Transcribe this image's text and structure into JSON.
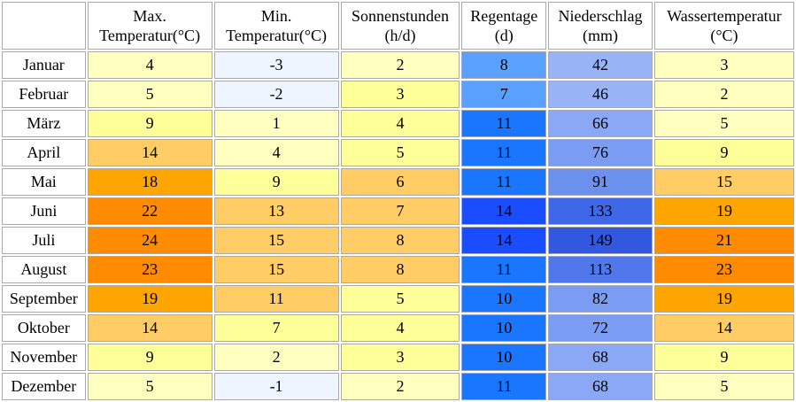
{
  "table": {
    "headers": [
      {
        "line1": "Max.",
        "line2": "Temperatur(°C)"
      },
      {
        "line1": "Min.",
        "line2": "Temperatur(°C)"
      },
      {
        "line1": "Sonnenstunden",
        "line2": "(h/d)"
      },
      {
        "line1": "Regentage",
        "line2": "(d)"
      },
      {
        "line1": "Niederschlag",
        "line2": "(mm)"
      },
      {
        "line1": "Wassertemperatur",
        "line2": "(°C)"
      }
    ],
    "rows": [
      {
        "month": "Januar",
        "values": [
          "4",
          "-3",
          "2",
          "8",
          "42",
          "3"
        ],
        "colors": [
          "#ffffc0",
          "#eef5ff",
          "#ffffc0",
          "#5aa0ff",
          "#98b4f7",
          "#ffffc0"
        ]
      },
      {
        "month": "Februar",
        "values": [
          "5",
          "-2",
          "3",
          "7",
          "46",
          "2"
        ],
        "colors": [
          "#ffffc0",
          "#eef5ff",
          "#ffff99",
          "#5aa0ff",
          "#98b4f7",
          "#ffffc0"
        ]
      },
      {
        "month": "März",
        "values": [
          "9",
          "1",
          "4",
          "11",
          "66",
          "5"
        ],
        "colors": [
          "#ffff99",
          "#ffffc0",
          "#ffff99",
          "#1a75ff",
          "#8aa8f5",
          "#ffffc0"
        ]
      },
      {
        "month": "April",
        "values": [
          "14",
          "4",
          "5",
          "11",
          "76",
          "9"
        ],
        "colors": [
          "#ffcc66",
          "#ffffc0",
          "#ffff99",
          "#1a75ff",
          "#7a9cf2",
          "#ffff99"
        ]
      },
      {
        "month": "Mai",
        "values": [
          "18",
          "9",
          "6",
          "11",
          "91",
          "15"
        ],
        "colors": [
          "#ffa500",
          "#ffff99",
          "#ffcc66",
          "#1a75ff",
          "#6b90ee",
          "#ffcc66"
        ]
      },
      {
        "month": "Juni",
        "values": [
          "22",
          "13",
          "7",
          "14",
          "133",
          "19"
        ],
        "colors": [
          "#ff8c00",
          "#ffcc66",
          "#ffcc66",
          "#1a4dff",
          "#3f68e8",
          "#ffa500"
        ]
      },
      {
        "month": "Juli",
        "values": [
          "24",
          "15",
          "8",
          "14",
          "149",
          "21"
        ],
        "colors": [
          "#ff8c00",
          "#ffcc66",
          "#ffcc66",
          "#1a4dff",
          "#3358e0",
          "#ff8c00"
        ]
      },
      {
        "month": "August",
        "values": [
          "23",
          "15",
          "8",
          "11",
          "113",
          "23"
        ],
        "colors": [
          "#ff8c00",
          "#ffcc66",
          "#ffcc66",
          "#1a75ff",
          "#5078ea",
          "#ff8c00"
        ]
      },
      {
        "month": "September",
        "values": [
          "19",
          "11",
          "5",
          "10",
          "82",
          "19"
        ],
        "colors": [
          "#ffa500",
          "#ffcc66",
          "#ffff99",
          "#1a75ff",
          "#7a9cf2",
          "#ffa500"
        ]
      },
      {
        "month": "Oktober",
        "values": [
          "14",
          "7",
          "4",
          "10",
          "72",
          "14"
        ],
        "colors": [
          "#ffcc66",
          "#ffff99",
          "#ffff99",
          "#1a75ff",
          "#7a9cf2",
          "#ffcc66"
        ]
      },
      {
        "month": "November",
        "values": [
          "9",
          "2",
          "3",
          "10",
          "68",
          "9"
        ],
        "colors": [
          "#ffff99",
          "#ffffc0",
          "#ffff99",
          "#1a75ff",
          "#8aa8f5",
          "#ffff99"
        ]
      },
      {
        "month": "Dezember",
        "values": [
          "5",
          "-1",
          "2",
          "11",
          "68",
          "5"
        ],
        "colors": [
          "#ffffc0",
          "#eef5ff",
          "#ffffc0",
          "#1a75ff",
          "#8aa8f5",
          "#ffffc0"
        ]
      }
    ]
  },
  "chart_data": {
    "type": "table",
    "columns": [
      "Max. Temperatur(°C)",
      "Min. Temperatur(°C)",
      "Sonnenstunden (h/d)",
      "Regentage (d)",
      "Niederschlag (mm)",
      "Wassertemperatur (°C)"
    ],
    "categories": [
      "Januar",
      "Februar",
      "März",
      "April",
      "Mai",
      "Juni",
      "Juli",
      "August",
      "September",
      "Oktober",
      "November",
      "Dezember"
    ],
    "series": [
      {
        "name": "Max. Temperatur(°C)",
        "values": [
          4,
          5,
          9,
          14,
          18,
          22,
          24,
          23,
          19,
          14,
          9,
          5
        ]
      },
      {
        "name": "Min. Temperatur(°C)",
        "values": [
          -3,
          -2,
          1,
          4,
          9,
          13,
          15,
          15,
          11,
          7,
          2,
          -1
        ]
      },
      {
        "name": "Sonnenstunden (h/d)",
        "values": [
          2,
          3,
          4,
          5,
          6,
          7,
          8,
          8,
          5,
          4,
          3,
          2
        ]
      },
      {
        "name": "Regentage (d)",
        "values": [
          8,
          7,
          11,
          11,
          11,
          14,
          14,
          11,
          10,
          10,
          10,
          11
        ]
      },
      {
        "name": "Niederschlag (mm)",
        "values": [
          42,
          46,
          66,
          76,
          91,
          133,
          149,
          113,
          82,
          72,
          68,
          68
        ]
      },
      {
        "name": "Wassertemperatur (°C)",
        "values": [
          3,
          2,
          5,
          9,
          15,
          19,
          21,
          23,
          19,
          14,
          9,
          5
        ]
      }
    ]
  }
}
